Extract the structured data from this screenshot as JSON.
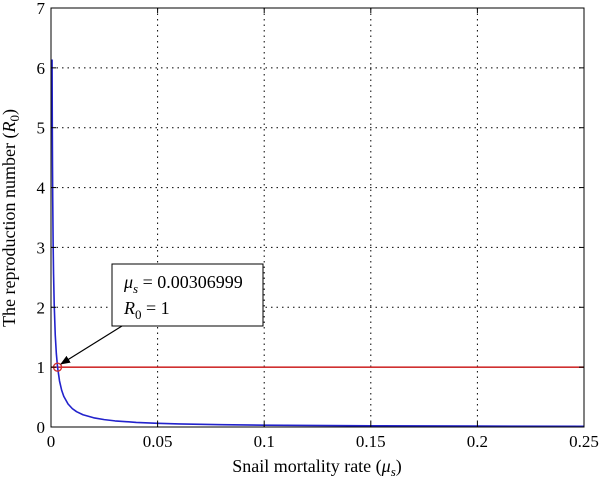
{
  "chart_data": {
    "type": "line",
    "title": "",
    "xlabel_main": "Snail mortality rate (",
    "xlabel_sym": "μ",
    "xlabel_sub": "s",
    "xlabel_end": ")",
    "ylabel_main": "The reproduction number (",
    "ylabel_sym": "R",
    "ylabel_sub": "0",
    "ylabel_end": ")",
    "xlim": [
      0,
      0.25
    ],
    "ylim": [
      0,
      7
    ],
    "grid": true,
    "x_ticks": [
      0,
      0.05,
      0.1,
      0.15,
      0.2,
      0.25
    ],
    "x_tick_labels": [
      "0",
      "0.05",
      "0.1",
      "0.15",
      "0.2",
      "0.25"
    ],
    "y_ticks": [
      0,
      1,
      2,
      3,
      4,
      5,
      6,
      7
    ],
    "y_tick_labels": [
      "0",
      "1",
      "2",
      "3",
      "4",
      "5",
      "6",
      "7"
    ],
    "series": [
      {
        "color": "#2222cc",
        "x": [
          0.0005,
          0.0006,
          0.0007,
          0.0008,
          0.001,
          0.0012,
          0.0015,
          0.002,
          0.0025,
          0.00307,
          0.004,
          0.005,
          0.006,
          0.008,
          0.01,
          0.012,
          0.015,
          0.02,
          0.025,
          0.03,
          0.04,
          0.05,
          0.06,
          0.08,
          0.1,
          0.12,
          0.15,
          0.2,
          0.25
        ],
        "y": [
          6.14,
          5.12,
          4.39,
          3.84,
          3.07,
          2.56,
          2.05,
          1.535,
          1.228,
          1.0,
          0.768,
          0.614,
          0.512,
          0.384,
          0.307,
          0.256,
          0.205,
          0.154,
          0.123,
          0.102,
          0.077,
          0.061,
          0.051,
          0.038,
          0.031,
          0.026,
          0.02,
          0.015,
          0.012
        ]
      },
      {
        "color": "#d03030",
        "x": [
          0,
          0.25
        ],
        "y": [
          1,
          1
        ]
      }
    ],
    "marker": {
      "x": 0.00307,
      "y": 1,
      "color": "#d03030"
    },
    "annotation": {
      "line1_sym": "μ",
      "line1_sub": "s",
      "line1_value": " = 0.00306999",
      "line2_sym": "R",
      "line2_sub": "0",
      "line2_value": " = 1"
    }
  }
}
